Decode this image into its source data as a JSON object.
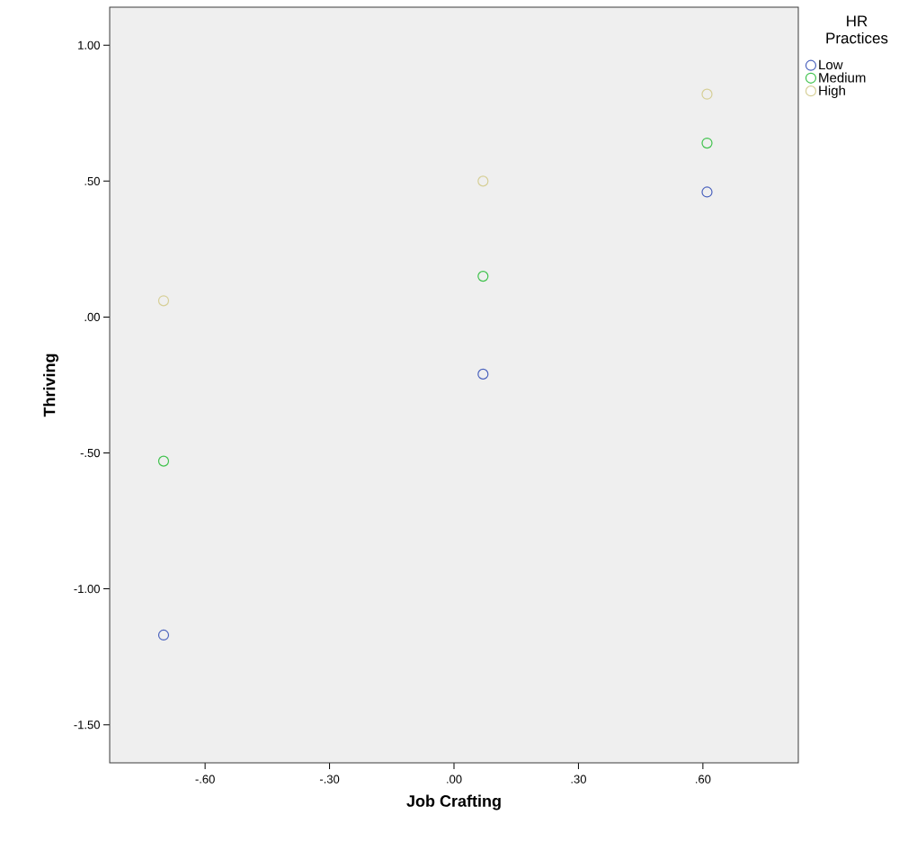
{
  "chart_data": {
    "type": "scatter",
    "xlabel": "Job Crafting",
    "ylabel": "Thriving",
    "legend_title": "HR Practices",
    "legend": "top right",
    "marker": "circle",
    "grid": false,
    "xlim": [
      -0.83,
      0.83
    ],
    "ylim": [
      -1.64,
      1.14
    ],
    "xticks": [
      {
        "value": -0.6,
        "label": "-.60"
      },
      {
        "value": -0.3,
        "label": "-.30"
      },
      {
        "value": 0,
        "label": ".00"
      },
      {
        "value": 0.3,
        "label": ".30"
      },
      {
        "value": 0.6,
        "label": ".60"
      }
    ],
    "yticks": [
      {
        "value": -1.5,
        "label": "-1.50"
      },
      {
        "value": -1.0,
        "label": "-1.00"
      },
      {
        "value": -0.5,
        "label": "-.50"
      },
      {
        "value": 0,
        "label": ".00"
      },
      {
        "value": 0.5,
        "label": ".50"
      },
      {
        "value": 1.0,
        "label": "1.00"
      }
    ],
    "series": [
      {
        "name": "Low",
        "color": "#4a62bd",
        "x": [
          -0.7,
          0.07,
          0.61
        ],
        "values": [
          -1.17,
          -0.21,
          0.46
        ]
      },
      {
        "name": "Medium",
        "color": "#3fc24c",
        "x": [
          -0.7,
          0.07,
          0.61
        ],
        "values": [
          -0.53,
          0.15,
          0.64
        ]
      },
      {
        "name": "High",
        "color": "#d6cf96",
        "x": [
          -0.7,
          0.07,
          0.61
        ],
        "values": [
          0.06,
          0.5,
          0.82
        ]
      }
    ]
  }
}
